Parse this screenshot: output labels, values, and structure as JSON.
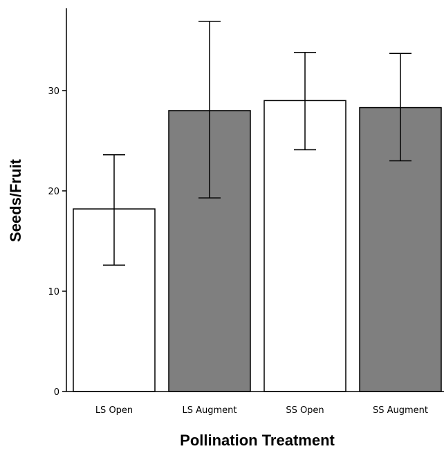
{
  "chart_data": {
    "type": "bar",
    "xlabel": "Pollination Treatment",
    "ylabel": "Seeds/Fruit",
    "ylim": [
      0,
      38.2
    ],
    "yticks": [
      0,
      10,
      20,
      30
    ],
    "categories": [
      "LS Open",
      "LS Augment",
      "SS Open",
      "SS Augment"
    ],
    "values": [
      18.2,
      28.0,
      29.0,
      28.3
    ],
    "error_low": [
      12.6,
      19.3,
      24.1,
      23.0
    ],
    "error_high": [
      23.6,
      36.9,
      33.8,
      33.7
    ],
    "bar_colors": [
      "#ffffff",
      "#7f7f7f",
      "#ffffff",
      "#7f7f7f"
    ],
    "grid": false,
    "legend": "none"
  }
}
